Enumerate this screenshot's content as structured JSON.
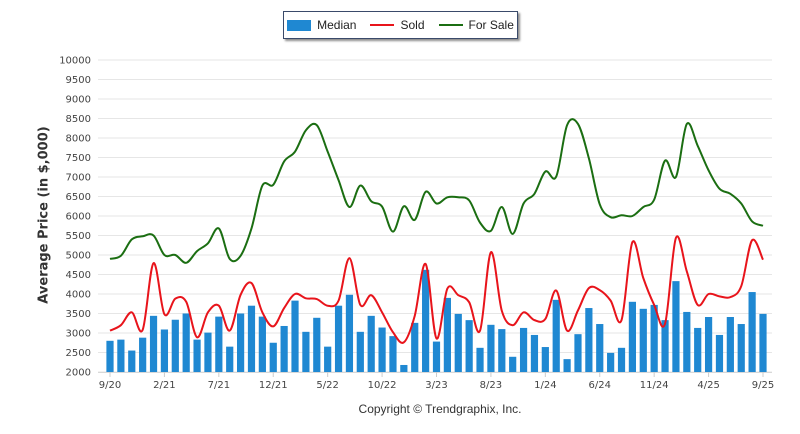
{
  "chart_data": {
    "type": "bar",
    "title": "",
    "xlabel": "",
    "ylabel": "Average Price (in $,000)",
    "ylim": [
      2000,
      10000
    ],
    "yticks": [
      2000,
      2500,
      3000,
      3500,
      4000,
      4500,
      5000,
      5500,
      6000,
      6500,
      7000,
      7500,
      8000,
      8500,
      9000,
      9500,
      10000
    ],
    "grid": true,
    "legend_position": "top-center",
    "x_tick_labels": [
      "9/20",
      "2/21",
      "7/21",
      "12/21",
      "5/22",
      "10/22",
      "3/23",
      "8/23",
      "1/24",
      "6/24",
      "11/24",
      "4/25",
      "9/25"
    ],
    "x_tick_interval_months": 5,
    "n_months": 61,
    "series": [
      {
        "name": "Median",
        "type": "bar",
        "color": "#1f88d2",
        "values": [
          2800,
          2830,
          2550,
          2880,
          3440,
          3090,
          3340,
          3500,
          2830,
          3010,
          3420,
          2650,
          3500,
          3700,
          3420,
          2750,
          3180,
          3830,
          3030,
          3390,
          2650,
          3700,
          3980,
          3030,
          3440,
          3140,
          2920,
          2180,
          3260,
          4620,
          2780,
          3900,
          3490,
          3330,
          2620,
          3210,
          3100,
          2390,
          3130,
          2950,
          2640,
          3850,
          2330,
          2970,
          3640,
          3230,
          2490,
          2620,
          3800,
          3620,
          3720,
          3330,
          4330,
          3540,
          3130,
          3410,
          2950,
          3410,
          3230,
          4050,
          3490
        ]
      },
      {
        "name": "Sold",
        "type": "line",
        "color": "#e8141b",
        "values": [
          3060,
          3200,
          3530,
          3080,
          4790,
          3480,
          3880,
          3800,
          2890,
          3530,
          3700,
          3060,
          3980,
          4280,
          3530,
          3170,
          3640,
          4000,
          3890,
          3870,
          3700,
          3830,
          4920,
          3720,
          3970,
          3530,
          3020,
          2760,
          3440,
          4770,
          2860,
          4140,
          3970,
          3790,
          3060,
          5070,
          3570,
          3200,
          3530,
          3330,
          3360,
          4090,
          3060,
          3580,
          4150,
          4100,
          3830,
          3330,
          5330,
          4410,
          3720,
          3240,
          5440,
          4580,
          3720,
          4000,
          3940,
          3920,
          4200,
          5380,
          4880
        ]
      },
      {
        "name": "For Sale",
        "type": "line",
        "color": "#1b6e12",
        "values": [
          4900,
          4980,
          5400,
          5480,
          5500,
          5000,
          5000,
          4800,
          5100,
          5300,
          5680,
          4900,
          4980,
          5680,
          6780,
          6800,
          7400,
          7650,
          8200,
          8330,
          7650,
          6920,
          6230,
          6780,
          6380,
          6240,
          5600,
          6250,
          5900,
          6620,
          6320,
          6480,
          6480,
          6400,
          5830,
          5620,
          6230,
          5540,
          6320,
          6570,
          7140,
          7010,
          8330,
          8360,
          7480,
          6300,
          5970,
          6020,
          6000,
          6230,
          6420,
          7420,
          7000,
          8360,
          7800,
          7170,
          6700,
          6570,
          6320,
          5860,
          5750
        ]
      }
    ]
  },
  "legend": {
    "items": [
      {
        "label": "Median",
        "kind": "box",
        "color": "#1f88d2"
      },
      {
        "label": "Sold",
        "kind": "line",
        "color": "#e8141b"
      },
      {
        "label": "For Sale",
        "kind": "line",
        "color": "#1b6e12"
      }
    ]
  },
  "copyright": "Copyright © Trendgraphix, Inc."
}
